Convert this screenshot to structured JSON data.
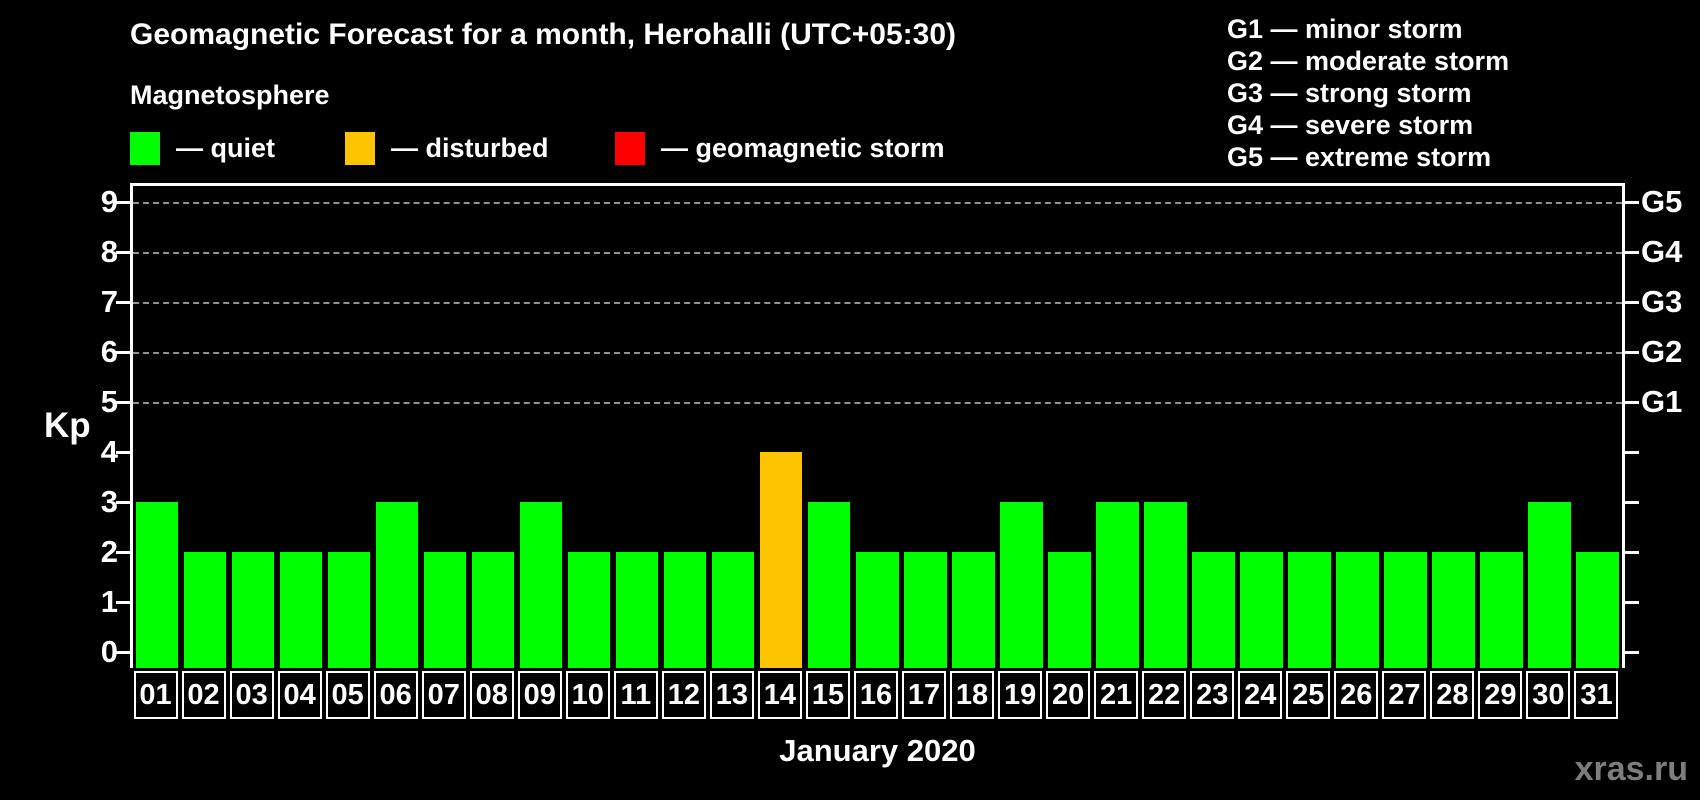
{
  "title": "Geomagnetic Forecast for a month, Herohalli (UTC+05:30)",
  "subtitle": "Magnetosphere",
  "legend": {
    "quiet": {
      "label": "— quiet",
      "color": "#00ff00"
    },
    "disturbed": {
      "label": "— disturbed",
      "color": "#ffc400"
    },
    "storm": {
      "label": "— geomagnetic storm",
      "color": "#ff0000"
    }
  },
  "g_legend": [
    "G1 — minor storm",
    "G2 — moderate storm",
    "G3 — strong storm",
    "G4 — severe storm",
    "G5 — extreme storm"
  ],
  "watermark": "xras.ru",
  "chart_data": {
    "type": "bar",
    "title": "Geomagnetic Forecast for a month, Herohalli (UTC+05:30)",
    "xlabel": "January 2020",
    "ylabel": "Kp",
    "ylim": [
      0,
      9
    ],
    "y_ticks": [
      0,
      1,
      2,
      3,
      4,
      5,
      6,
      7,
      8,
      9
    ],
    "gridlines_kp": [
      5,
      6,
      7,
      8,
      9
    ],
    "grid": "horizontal dashed lines at storm levels G1–G5",
    "legend_position": "top-left",
    "categories": [
      "01",
      "02",
      "03",
      "04",
      "05",
      "06",
      "07",
      "08",
      "09",
      "10",
      "11",
      "12",
      "13",
      "14",
      "15",
      "16",
      "17",
      "18",
      "19",
      "20",
      "21",
      "22",
      "23",
      "24",
      "25",
      "26",
      "27",
      "28",
      "29",
      "30",
      "31"
    ],
    "values": [
      3,
      2,
      2,
      2,
      2,
      3,
      2,
      2,
      3,
      2,
      2,
      2,
      2,
      4,
      3,
      2,
      2,
      2,
      3,
      2,
      3,
      3,
      2,
      2,
      2,
      2,
      2,
      2,
      2,
      3,
      2
    ],
    "statuses": [
      "quiet",
      "quiet",
      "quiet",
      "quiet",
      "quiet",
      "quiet",
      "quiet",
      "quiet",
      "quiet",
      "quiet",
      "quiet",
      "quiet",
      "quiet",
      "disturbed",
      "quiet",
      "quiet",
      "quiet",
      "quiet",
      "quiet",
      "quiet",
      "quiet",
      "quiet",
      "quiet",
      "quiet",
      "quiet",
      "quiet",
      "quiet",
      "quiet",
      "quiet",
      "quiet",
      "quiet"
    ],
    "right_axis": [
      {
        "label": "G1",
        "kp": 5
      },
      {
        "label": "G2",
        "kp": 6
      },
      {
        "label": "G3",
        "kp": 7
      },
      {
        "label": "G4",
        "kp": 8
      },
      {
        "label": "G5",
        "kp": 9
      }
    ]
  }
}
